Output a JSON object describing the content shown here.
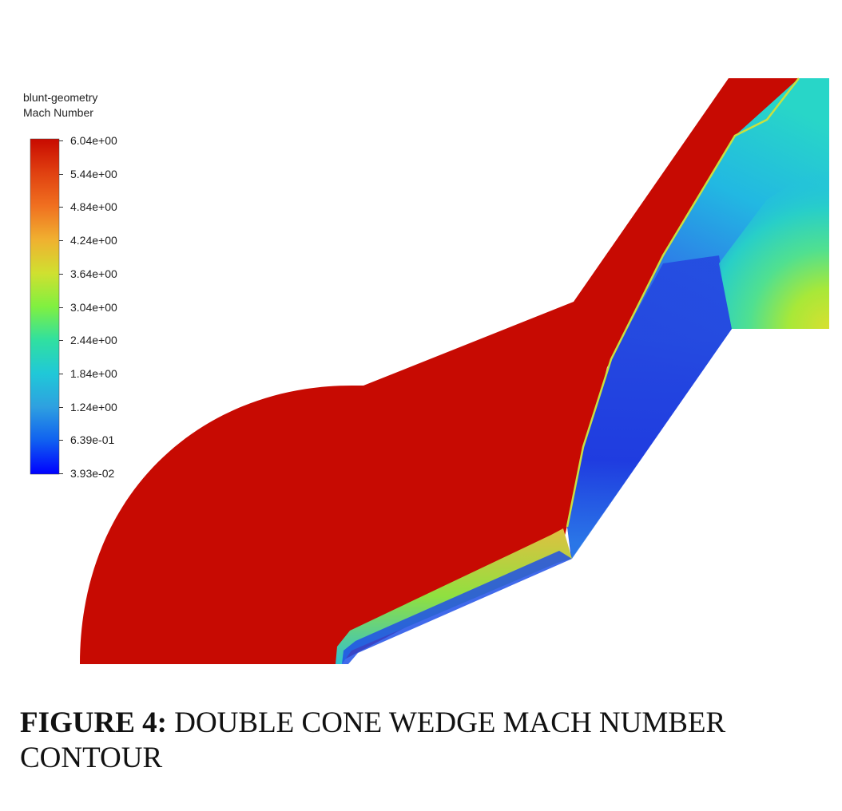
{
  "legend": {
    "title_line1": "blunt-geometry",
    "title_line2": "Mach Number",
    "colors": [
      "#0000ff",
      "#1060f0",
      "#2ea0e0",
      "#20c8d8",
      "#30e0a0",
      "#80f040",
      "#d0e030",
      "#f0b030",
      "#f07020",
      "#e04010",
      "#c80a00"
    ],
    "ticks": [
      "6.04e+00",
      "5.44e+00",
      "4.84e+00",
      "4.24e+00",
      "3.64e+00",
      "3.04e+00",
      "2.44e+00",
      "1.84e+00",
      "1.24e+00",
      "6.39e-01",
      "3.93e-02"
    ]
  },
  "figure": {
    "freestream_color": "#c70a02",
    "caption_label": "FIGURE 4:",
    "caption_text": "DOUBLE CONE WEDGE MACH NUMBER CONTOUR"
  }
}
